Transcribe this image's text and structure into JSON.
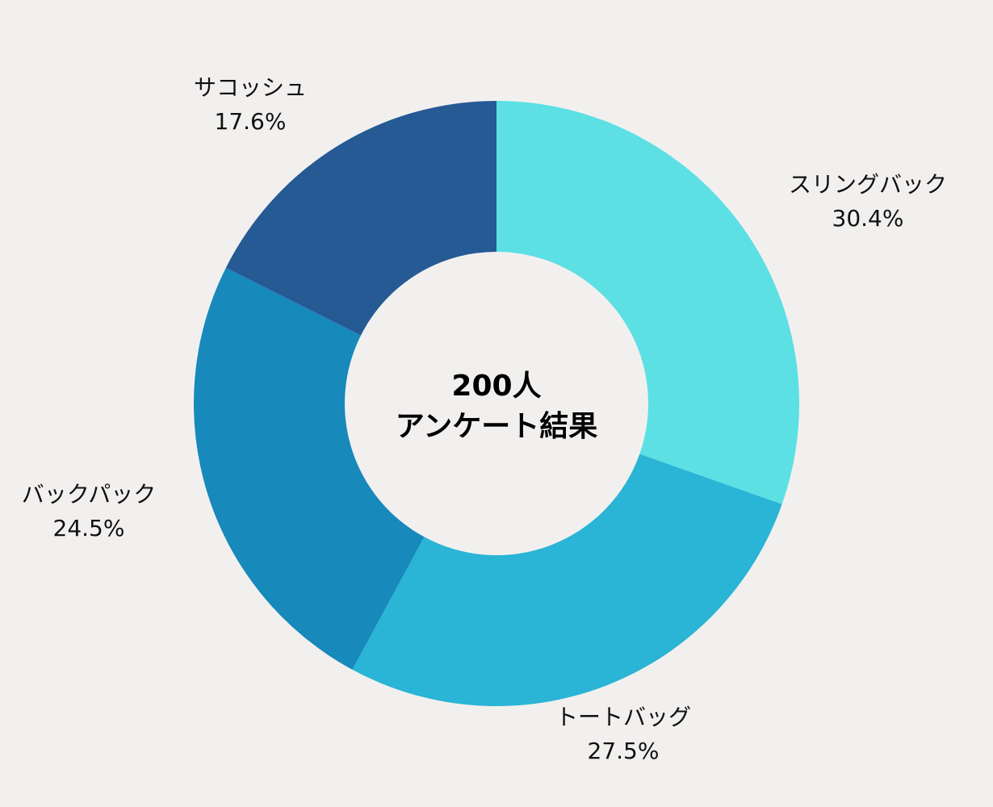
{
  "chart_data": {
    "type": "pie",
    "variant": "donut",
    "center_text": [
      "200人",
      "アンケート結果"
    ],
    "slices": [
      {
        "label": "スリングバック",
        "value": 30.4,
        "value_text": "30.4%",
        "color": "#5ce0e4"
      },
      {
        "label": "トートバッグ",
        "value": 27.5,
        "value_text": "27.5%",
        "color": "#2ab4d5"
      },
      {
        "label": "バックパック",
        "value": 24.5,
        "value_text": "24.5%",
        "color": "#1789bb"
      },
      {
        "label": "サコッシュ",
        "value": 17.6,
        "value_text": "17.6%",
        "color": "#265a95"
      }
    ],
    "start_angle": "top, clockwise",
    "background": "#f2f0ef"
  }
}
